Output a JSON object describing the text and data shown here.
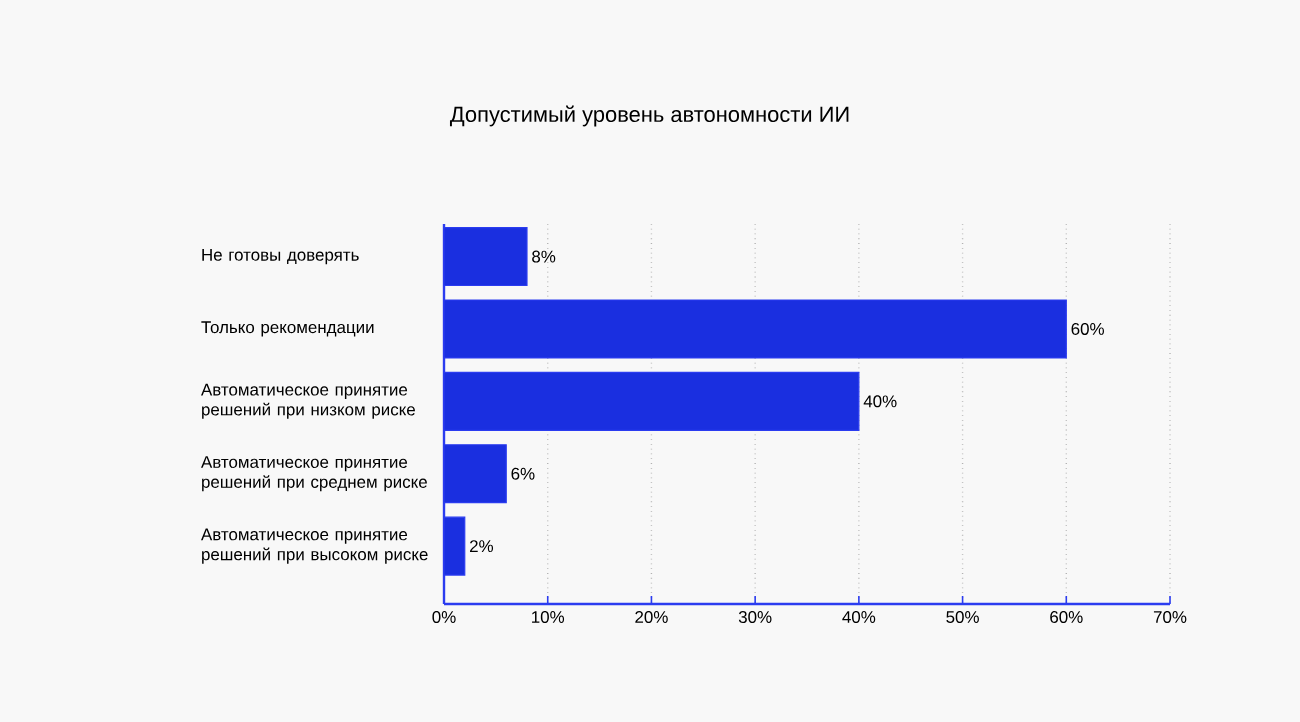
{
  "chart_data": {
    "type": "bar",
    "orientation": "horizontal",
    "title": "Допустимый уровень автономности ИИ",
    "categories": [
      "Не готовы доверять",
      "Только рекомендации",
      "Автоматическое принятие решений при низком риске",
      "Автоматическое принятие решений при среднем риске",
      "Автоматическое принятие решений при высоком риске"
    ],
    "values": [
      8,
      60,
      40,
      6,
      2
    ],
    "value_labels": [
      "8%",
      "60%",
      "40%",
      "6%",
      "2%"
    ],
    "color": "#1a2fe0",
    "xlim": [
      0,
      70
    ],
    "xticks": [
      {
        "value": 0,
        "label": "0%"
      },
      {
        "value": 10,
        "label": "10%"
      },
      {
        "value": 20,
        "label": "20%"
      },
      {
        "value": 30,
        "label": "30%"
      },
      {
        "value": 40,
        "label": "40%"
      },
      {
        "value": 50,
        "label": "50%"
      },
      {
        "value": 60,
        "label": "60%"
      },
      {
        "value": 70,
        "label": "70%"
      }
    ],
    "grid": "x"
  }
}
